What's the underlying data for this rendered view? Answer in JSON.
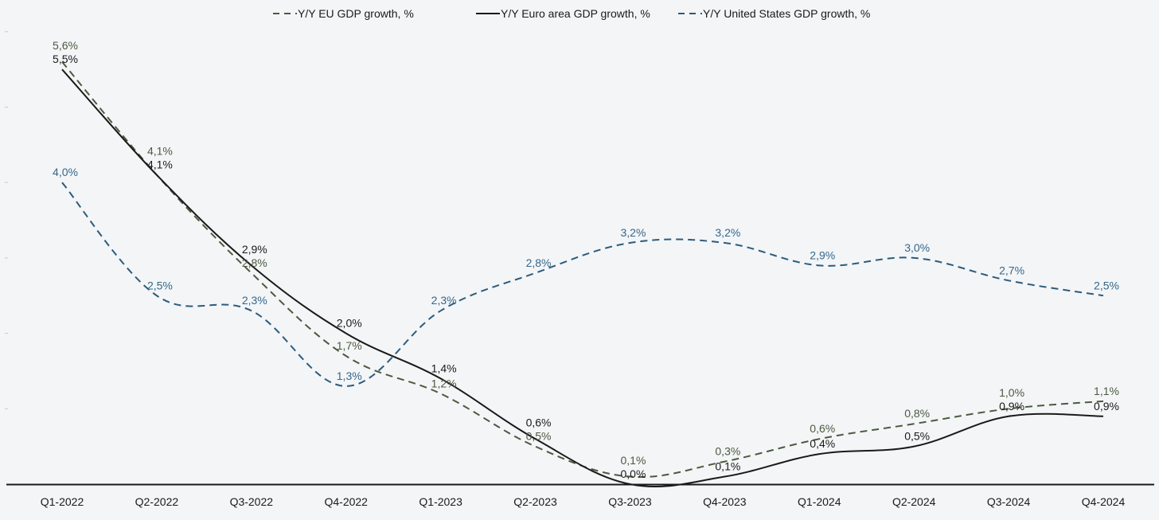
{
  "chart_data": {
    "type": "line",
    "title": "",
    "xlabel": "",
    "ylabel": "",
    "ylim": [
      0,
      6
    ],
    "grid": false,
    "legend_position": "top-center",
    "categories": [
      "Q1-2022",
      "Q2-2022",
      "Q3-2022",
      "Q4-2022",
      "Q1-2023",
      "Q2-2023",
      "Q3-2023",
      "Q4-2023",
      "Q1-2024",
      "Q2-2024",
      "Q3-2024",
      "Q4-2024"
    ],
    "series": [
      {
        "name": "Y/Y EU GDP growth, %",
        "style": "dashed",
        "color": "#4b5a3f",
        "label_color": "#4b5a3f",
        "values": [
          5.6,
          4.1,
          2.8,
          1.7,
          1.2,
          0.5,
          0.1,
          0.3,
          0.6,
          0.8,
          1.0,
          1.1
        ],
        "labels": [
          "5,6%",
          "4,1%",
          "2,8%",
          "1,7%",
          "1,2%",
          "0,5%",
          "0,1%",
          "0,3%",
          "0,6%",
          "0,8%",
          "1,0%",
          "1,1%"
        ]
      },
      {
        "name": "Y/Y Euro area GDP growth, %",
        "style": "solid",
        "color": "#1a1a1a",
        "label_color": "#1a1a1a",
        "values": [
          5.5,
          4.1,
          2.9,
          2.0,
          1.4,
          0.6,
          0.0,
          0.1,
          0.4,
          0.5,
          0.9,
          0.9
        ],
        "labels": [
          "5,5%",
          "4,1%",
          "2,9%",
          "2,0%",
          "1,4%",
          "0,6%",
          "0,0%",
          "0,1%",
          "0,4%",
          "0,5%",
          "0,9%",
          "0,9%"
        ]
      },
      {
        "name": "Y/Y United States GDP growth, %",
        "style": "dashed",
        "color": "#2d5b7c",
        "label_color": "#35678a",
        "values": [
          4.0,
          2.5,
          2.3,
          1.3,
          2.3,
          2.8,
          3.2,
          3.2,
          2.9,
          3.0,
          2.7,
          2.5
        ],
        "labels": [
          "4,0%",
          "2,5%",
          "2,3%",
          "1,3%",
          "2,3%",
          "2,8%",
          "3,2%",
          "3,2%",
          "2,9%",
          "3,0%",
          "2,7%",
          "2,5%"
        ]
      }
    ]
  }
}
